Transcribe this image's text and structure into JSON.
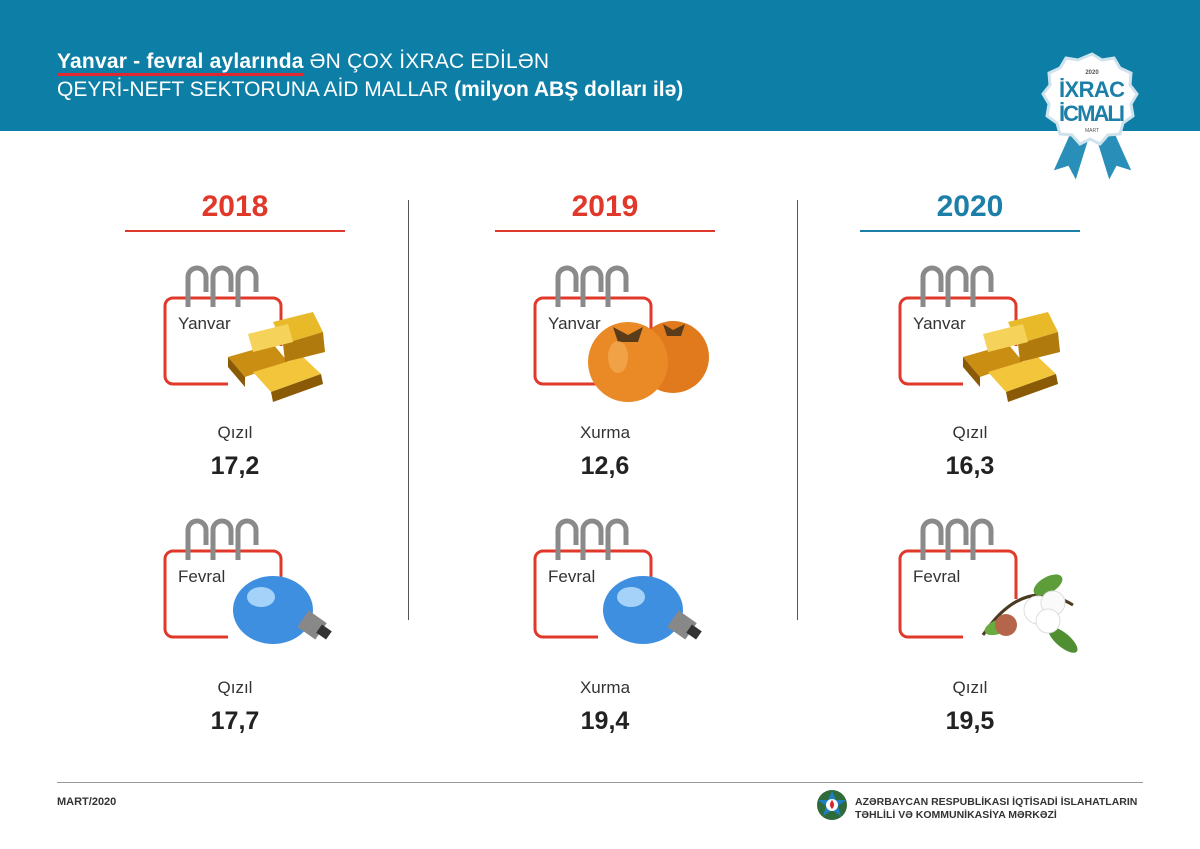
{
  "header": {
    "title_bold": "Yanvar - fevral  aylarında",
    "title_rest": " ƏN ÇOX İXRAC EDİLƏN",
    "subtitle": "QEYRİ-NEFT SEKTORUNA AİD MALLAR ",
    "subtitle_bold": "(milyon ABŞ dolları ilə)"
  },
  "badge": {
    "year": "2020",
    "line1": "İXRAC",
    "line2": "İCMALI",
    "month": "MART"
  },
  "colors": {
    "header": "#0d7ea6",
    "red": "#e0392b",
    "blue": "#1b7fa8"
  },
  "columns": [
    {
      "year": "2018",
      "color": "#e0392b",
      "months": [
        {
          "month": "Yanvar",
          "product": "Qızıl",
          "value": "17,2",
          "icon": "gold-bars-icon"
        },
        {
          "month": "Fevral",
          "product": "Qızıl",
          "value": "17,7",
          "icon": "light-bulb-icon"
        }
      ]
    },
    {
      "year": "2019",
      "color": "#e0392b",
      "months": [
        {
          "month": "Yanvar",
          "product": "Xurma",
          "value": "12,6",
          "icon": "persimmon-icon"
        },
        {
          "month": "Fevral",
          "product": "Xurma",
          "value": "19,4",
          "icon": "light-bulb-icon"
        }
      ]
    },
    {
      "year": "2020",
      "color": "#1b7fa8",
      "months": [
        {
          "month": "Yanvar",
          "product": "Qızıl",
          "value": "16,3",
          "icon": "gold-bars-icon"
        },
        {
          "month": "Fevral",
          "product": "Qızıl",
          "value": "19,5",
          "icon": "cotton-icon"
        }
      ]
    }
  ],
  "footer": {
    "date": "MART/2020",
    "org_line1": "AZƏRBAYCAN RESPUBLİKASI İQTİSADİ İSLAHATLARIN",
    "org_line2": "TƏHLİLİ VƏ KOMMUNİKASİYA MƏRKƏZİ"
  }
}
